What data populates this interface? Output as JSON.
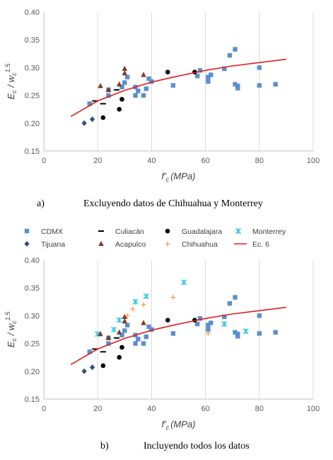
{
  "figure": {
    "caption_a_letter": "a)",
    "caption_a_text": "Excluyendo datos de Chihuahua y Monterrey",
    "caption_b_letter": "b)",
    "caption_b_text": "Incluyendo todos los datos"
  },
  "legend": {
    "items": [
      "CDMX",
      "Culiacán",
      "Guadalajara",
      "Monterrey",
      "Tijuana",
      "Acapulco",
      "Chihuahua",
      "Ec. 6"
    ]
  },
  "colors": {
    "CDMX": "#5b8ed0",
    "Culiacán": "#000000",
    "Guadalajara": "#000000",
    "Monterrey": "#2ec4e6",
    "Tijuana": "#2e4f7e",
    "Acapulco": "#7a3c2c",
    "Chihuahua": "#f0a050",
    "Ec. 6": "#e02020"
  },
  "chart_data": [
    {
      "type": "scatter",
      "xlabel": "f'c (MPa)",
      "xlabel_main": "f'",
      "xlabel_sub": "c",
      "xlabel_unit": "(MPa)",
      "ylabel_main": "Ec / wc",
      "ylabel_exp": "1.5",
      "xlim": [
        0,
        100
      ],
      "ylim": [
        0.15,
        0.4
      ],
      "xticks": [
        "0",
        "20",
        "40",
        "60",
        "80",
        "100"
      ],
      "yticks": [
        "0.15",
        "0.20",
        "0.25",
        "0.30",
        "0.35",
        "0.40"
      ],
      "grid": "vertical",
      "series": [
        {
          "name": "CDMX",
          "marker": "square",
          "points": [
            [
              17,
              0.235
            ],
            [
              24,
              0.25
            ],
            [
              24,
              0.26
            ],
            [
              29,
              0.265
            ],
            [
              30,
              0.273
            ],
            [
              31,
              0.283
            ],
            [
              34,
              0.25
            ],
            [
              34,
              0.265
            ],
            [
              35,
              0.258
            ],
            [
              37,
              0.25
            ],
            [
              38,
              0.262
            ],
            [
              39,
              0.28
            ],
            [
              40,
              0.275
            ],
            [
              48,
              0.268
            ],
            [
              57,
              0.285
            ],
            [
              58,
              0.295
            ],
            [
              61,
              0.283
            ],
            [
              61,
              0.275
            ],
            [
              62,
              0.287
            ],
            [
              67,
              0.298
            ],
            [
              69,
              0.322
            ],
            [
              71,
              0.333
            ],
            [
              71,
              0.27
            ],
            [
              72,
              0.263
            ],
            [
              72,
              0.267
            ],
            [
              80,
              0.3
            ],
            [
              80,
              0.268
            ],
            [
              86,
              0.27
            ]
          ]
        },
        {
          "name": "Culiacán",
          "marker": "dash",
          "points": [
            [
              19,
              0.24
            ],
            [
              22,
              0.235
            ],
            [
              27,
              0.26
            ]
          ]
        },
        {
          "name": "Guadalajara",
          "marker": "circle",
          "points": [
            [
              22,
              0.21
            ],
            [
              28,
              0.225
            ],
            [
              29,
              0.243
            ],
            [
              46,
              0.292
            ],
            [
              56,
              0.292
            ]
          ]
        },
        {
          "name": "Tijuana",
          "marker": "diamond",
          "points": [
            [
              15,
              0.2
            ],
            [
              18,
              0.207
            ]
          ]
        },
        {
          "name": "Acapulco",
          "marker": "triangle",
          "points": [
            [
              21,
              0.267
            ],
            [
              24,
              0.26
            ],
            [
              28,
              0.27
            ],
            [
              30,
              0.29
            ],
            [
              30,
              0.298
            ],
            [
              37,
              0.287
            ]
          ]
        },
        {
          "name": "Ec. 6",
          "marker": "line",
          "points": [
            [
              10,
              0.212
            ],
            [
              20,
              0.24
            ],
            [
              30,
              0.259
            ],
            [
              40,
              0.274
            ],
            [
              50,
              0.285
            ],
            [
              60,
              0.295
            ],
            [
              70,
              0.303
            ],
            [
              80,
              0.309
            ],
            [
              90,
              0.315
            ]
          ]
        }
      ]
    },
    {
      "type": "scatter",
      "xlabel": "f'c (MPa)",
      "xlabel_main": "f'",
      "xlabel_sub": "c",
      "xlabel_unit": "(MPa)",
      "ylabel_main": "Ec / wc",
      "ylabel_exp": "1.5",
      "xlim": [
        0,
        100
      ],
      "ylim": [
        0.15,
        0.4
      ],
      "xticks": [
        "0",
        "20",
        "40",
        "60",
        "80",
        "100"
      ],
      "yticks": [
        "0.15",
        "0.20",
        "0.25",
        "0.30",
        "0.35",
        "0.40"
      ],
      "grid": "vertical",
      "series": [
        {
          "name": "CDMX",
          "marker": "square",
          "points": [
            [
              17,
              0.235
            ],
            [
              24,
              0.25
            ],
            [
              24,
              0.26
            ],
            [
              29,
              0.265
            ],
            [
              30,
              0.273
            ],
            [
              31,
              0.283
            ],
            [
              34,
              0.25
            ],
            [
              34,
              0.265
            ],
            [
              35,
              0.258
            ],
            [
              37,
              0.25
            ],
            [
              38,
              0.262
            ],
            [
              39,
              0.28
            ],
            [
              40,
              0.275
            ],
            [
              48,
              0.268
            ],
            [
              57,
              0.285
            ],
            [
              58,
              0.295
            ],
            [
              61,
              0.283
            ],
            [
              61,
              0.275
            ],
            [
              62,
              0.287
            ],
            [
              67,
              0.298
            ],
            [
              69,
              0.322
            ],
            [
              71,
              0.333
            ],
            [
              71,
              0.27
            ],
            [
              72,
              0.263
            ],
            [
              72,
              0.267
            ],
            [
              80,
              0.3
            ],
            [
              80,
              0.268
            ],
            [
              86,
              0.27
            ]
          ]
        },
        {
          "name": "Culiacán",
          "marker": "dash",
          "points": [
            [
              19,
              0.24
            ],
            [
              22,
              0.235
            ],
            [
              27,
              0.26
            ]
          ]
        },
        {
          "name": "Guadalajara",
          "marker": "circle",
          "points": [
            [
              22,
              0.21
            ],
            [
              28,
              0.225
            ],
            [
              29,
              0.243
            ],
            [
              46,
              0.292
            ],
            [
              56,
              0.292
            ]
          ]
        },
        {
          "name": "Monterrey",
          "marker": "star",
          "points": [
            [
              20,
              0.267
            ],
            [
              26,
              0.275
            ],
            [
              28,
              0.292
            ],
            [
              34,
              0.325
            ],
            [
              38,
              0.335
            ],
            [
              52,
              0.36
            ],
            [
              67,
              0.285
            ],
            [
              75,
              0.272
            ]
          ]
        },
        {
          "name": "Tijuana",
          "marker": "diamond",
          "points": [
            [
              15,
              0.2
            ],
            [
              18,
              0.207
            ]
          ]
        },
        {
          "name": "Acapulco",
          "marker": "triangle",
          "points": [
            [
              21,
              0.267
            ],
            [
              24,
              0.26
            ],
            [
              28,
              0.27
            ],
            [
              30,
              0.29
            ],
            [
              30,
              0.298
            ],
            [
              37,
              0.287
            ]
          ]
        },
        {
          "name": "Chihuahua",
          "marker": "plus",
          "points": [
            [
              31,
              0.3
            ],
            [
              33,
              0.312
            ],
            [
              37,
              0.32
            ],
            [
              48,
              0.333
            ],
            [
              61,
              0.268
            ]
          ]
        },
        {
          "name": "Ec. 6",
          "marker": "line",
          "points": [
            [
              10,
              0.212
            ],
            [
              20,
              0.24
            ],
            [
              30,
              0.259
            ],
            [
              40,
              0.274
            ],
            [
              50,
              0.285
            ],
            [
              60,
              0.295
            ],
            [
              70,
              0.303
            ],
            [
              80,
              0.309
            ],
            [
              90,
              0.315
            ]
          ]
        }
      ]
    }
  ]
}
